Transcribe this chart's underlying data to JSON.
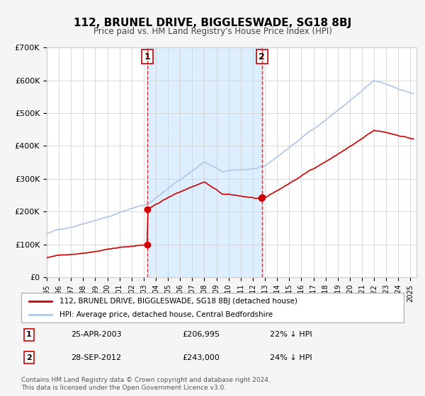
{
  "title": "112, BRUNEL DRIVE, BIGGLESWADE, SG18 8BJ",
  "subtitle": "Price paid vs. HM Land Registry's House Price Index (HPI)",
  "ylabel": "",
  "ylim": [
    0,
    700000
  ],
  "yticks": [
    0,
    100000,
    200000,
    300000,
    400000,
    500000,
    600000,
    700000
  ],
  "ytick_labels": [
    "£0",
    "£100K",
    "£200K",
    "£300K",
    "£400K",
    "£500K",
    "£600K",
    "£700K"
  ],
  "xlim_start": 1995.0,
  "xlim_end": 2025.5,
  "sale1_date": 2003.31,
  "sale1_price": 206995,
  "sale1_label": "1",
  "sale1_display": "25-APR-2003",
  "sale1_price_display": "£206,995",
  "sale1_hpi": "22% ↓ HPI",
  "sale2_date": 2012.75,
  "sale2_price": 243000,
  "sale2_label": "2",
  "sale2_display": "28-SEP-2012",
  "sale2_price_display": "£243,000",
  "sale2_hpi": "24% ↓ HPI",
  "hpi_color": "#aec6e8",
  "price_color": "#cc0000",
  "shade_color": "#ddeeff",
  "vline_color": "#cc0000",
  "bg_color": "#f5f5f5",
  "plot_bg_color": "#ffffff",
  "legend_label_price": "112, BRUNEL DRIVE, BIGGLESWADE, SG18 8BJ (detached house)",
  "legend_label_hpi": "HPI: Average price, detached house, Central Bedfordshire",
  "footer": "Contains HM Land Registry data © Crown copyright and database right 2024.\nThis data is licensed under the Open Government Licence v3.0."
}
